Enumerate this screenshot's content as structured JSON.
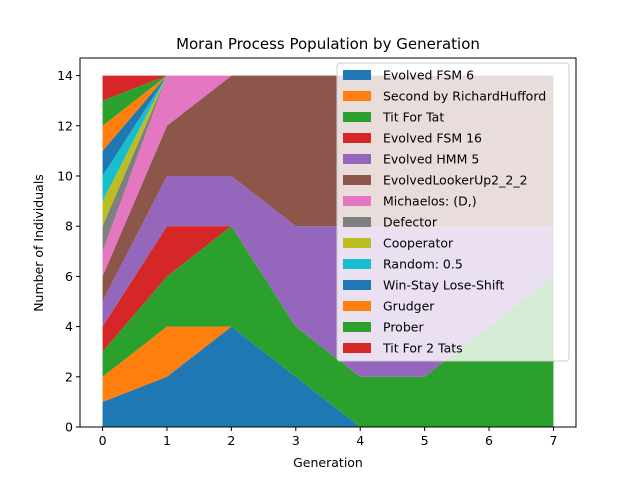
{
  "chart_data": {
    "type": "area",
    "stacked": true,
    "title": "Moran Process Population by Generation",
    "xlabel": "Generation",
    "ylabel": "Number of Individuals",
    "x": [
      0,
      1,
      2,
      3,
      4,
      5,
      6,
      7
    ],
    "xlim": [
      -0.35,
      7.35
    ],
    "ylim": [
      0,
      14.7
    ],
    "xticks": [
      0,
      1,
      2,
      3,
      4,
      5,
      6,
      7
    ],
    "yticks": [
      0,
      2,
      4,
      6,
      8,
      10,
      12,
      14
    ],
    "grid": false,
    "legend_position": "upper right",
    "series": [
      {
        "name": "Evolved FSM 6",
        "color": "#1f77b4",
        "values": [
          1,
          2,
          4,
          2,
          0,
          0,
          0,
          0
        ]
      },
      {
        "name": "Second by RichardHufford",
        "color": "#ff7f0e",
        "values": [
          1,
          2,
          0,
          0,
          0,
          0,
          0,
          0
        ]
      },
      {
        "name": "Tit For Tat",
        "color": "#2ca02c",
        "values": [
          1,
          2,
          4,
          2,
          2,
          2,
          4,
          6
        ]
      },
      {
        "name": "Evolved FSM 16",
        "color": "#d62728",
        "values": [
          1,
          2,
          0,
          0,
          0,
          0,
          0,
          0
        ]
      },
      {
        "name": "Evolved HMM 5",
        "color": "#9467bd",
        "values": [
          1,
          2,
          2,
          4,
          6,
          6,
          4,
          2
        ]
      },
      {
        "name": "EvolvedLookerUp2_2_2",
        "color": "#8c564b",
        "values": [
          1,
          2,
          4,
          6,
          6,
          6,
          6,
          6
        ]
      },
      {
        "name": "Michaelos: (D,)",
        "color": "#e377c2",
        "values": [
          1,
          2,
          0,
          0,
          0,
          0,
          0,
          0
        ]
      },
      {
        "name": "Defector",
        "color": "#7f7f7f",
        "values": [
          1,
          0,
          0,
          0,
          0,
          0,
          0,
          0
        ]
      },
      {
        "name": "Cooperator",
        "color": "#bcbd22",
        "values": [
          1,
          0,
          0,
          0,
          0,
          0,
          0,
          0
        ]
      },
      {
        "name": "Random: 0.5",
        "color": "#17becf",
        "values": [
          1,
          0,
          0,
          0,
          0,
          0,
          0,
          0
        ]
      },
      {
        "name": "Win-Stay Lose-Shift",
        "color": "#1f77b4",
        "values": [
          1,
          0,
          0,
          0,
          0,
          0,
          0,
          0
        ]
      },
      {
        "name": "Grudger",
        "color": "#ff7f0e",
        "values": [
          1,
          0,
          0,
          0,
          0,
          0,
          0,
          0
        ]
      },
      {
        "name": "Prober",
        "color": "#2ca02c",
        "values": [
          1,
          0,
          0,
          0,
          0,
          0,
          0,
          0
        ]
      },
      {
        "name": "Tit For 2 Tats",
        "color": "#d62728",
        "values": [
          1,
          0,
          0,
          0,
          0,
          0,
          0,
          0
        ]
      }
    ]
  }
}
